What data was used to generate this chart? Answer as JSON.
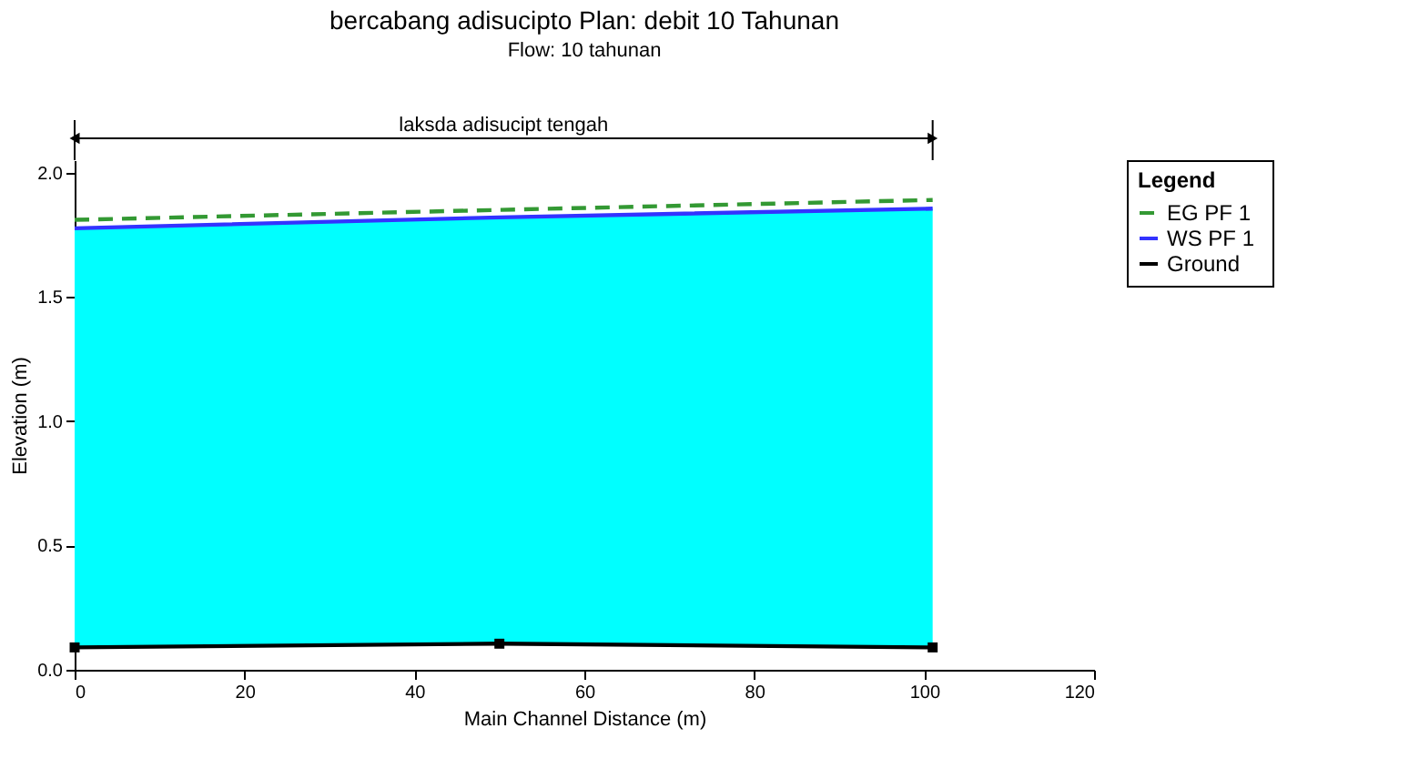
{
  "chart_data": {
    "type": "line",
    "title": "bercabang adisucipto        Plan: debit 10 Tahunan",
    "subtitle": "Flow: 10 tahunan",
    "xlabel": "Main Channel Distance (m)",
    "ylabel": "Elevation (m)",
    "legend_title": "Legend",
    "annotations": [
      "laksda adisucipt tengah"
    ],
    "x": [
      0,
      50,
      101
    ],
    "series": [
      {
        "name": "EG  PF 1",
        "color": "#339933",
        "line_style": "dashed",
        "values": [
          1.81,
          1.85,
          1.89
        ]
      },
      {
        "name": "WS  PF 1",
        "type": "area",
        "color": "#3333ff",
        "colors": [
          "#00ffff",
          "#00ffff",
          "#00ffff"
        ],
        "values": [
          1.776,
          1.82,
          1.855
        ]
      },
      {
        "name": "Ground",
        "color": "#000000",
        "marker": "square",
        "values": [
          0.09,
          0.105,
          0.09
        ]
      }
    ],
    "xlim": [
      0,
      120
    ],
    "xticks": [
      0,
      20,
      40,
      60,
      80,
      100,
      120
    ],
    "ylim": [
      0,
      2.05
    ],
    "yticks": [
      {
        "value": 0,
        "label": "0.0"
      },
      {
        "value": 0.5,
        "label": "0.5"
      },
      {
        "value": 1.0,
        "label": "1.0"
      },
      {
        "value": 1.5,
        "label": "1.5"
      },
      {
        "value": 2.0,
        "label": "2.0"
      }
    ],
    "grid": false,
    "legend": "right"
  }
}
